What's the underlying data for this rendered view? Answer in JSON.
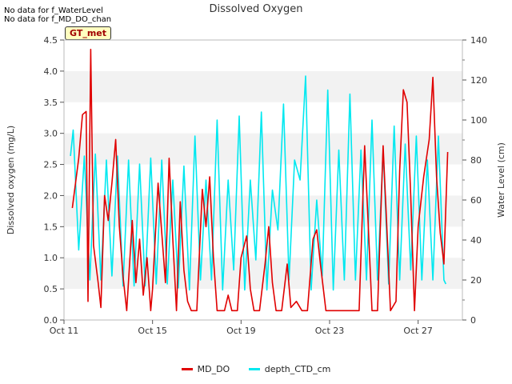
{
  "notes": [
    "No data for f_WaterLevel",
    "No data for f_MD_DO_chan"
  ],
  "badge": "GT_met",
  "chart_data": {
    "type": "line",
    "title": "Dissolved Oxygen",
    "ylabel": "Dissolved oxygen (mg/L)",
    "y2label": "Water Level (cm)",
    "xlim": [
      "2023-10-11",
      "2023-10-29"
    ],
    "x_ticks": [
      {
        "date": "2023-10-11",
        "label": "Oct 11"
      },
      {
        "date": "2023-10-15",
        "label": "Oct 15"
      },
      {
        "date": "2023-10-19",
        "label": "Oct 19"
      },
      {
        "date": "2023-10-23",
        "label": "Oct 23"
      },
      {
        "date": "2023-10-27",
        "label": "Oct 27"
      }
    ],
    "ylim": [
      0,
      4.5
    ],
    "y_ticks": [
      "0.0",
      "0.5",
      "1.0",
      "1.5",
      "2.0",
      "2.5",
      "3.0",
      "3.5",
      "4.0",
      "4.5"
    ],
    "y2lim": [
      0,
      140
    ],
    "y2_ticks": [
      "0",
      "20",
      "40",
      "60",
      "80",
      "100",
      "120",
      "140"
    ],
    "grid": "horizontal bands",
    "legend": "bottom",
    "series": [
      {
        "name": "MD_DO",
        "axis": "left",
        "color": "#e00000",
        "points": [
          [
            "2023-10-11T09:00",
            1.8
          ],
          [
            "2023-10-11T16:00",
            2.6
          ],
          [
            "2023-10-11T20:00",
            3.3
          ],
          [
            "2023-10-12T00:00",
            3.35
          ],
          [
            "2023-10-12T02:00",
            0.3
          ],
          [
            "2023-10-12T05:00",
            4.35
          ],
          [
            "2023-10-12T08:00",
            1.2
          ],
          [
            "2023-10-12T13:00",
            0.6
          ],
          [
            "2023-10-12T16:00",
            0.2
          ],
          [
            "2023-10-12T20:00",
            2.0
          ],
          [
            "2023-10-13T00:00",
            1.6
          ],
          [
            "2023-10-13T04:00",
            2.2
          ],
          [
            "2023-10-13T08:00",
            2.9
          ],
          [
            "2023-10-13T12:00",
            1.5
          ],
          [
            "2023-10-13T16:00",
            0.7
          ],
          [
            "2023-10-13T20:00",
            0.15
          ],
          [
            "2023-10-14T02:00",
            1.6
          ],
          [
            "2023-10-14T06:00",
            0.6
          ],
          [
            "2023-10-14T10:00",
            1.3
          ],
          [
            "2023-10-14T14:00",
            0.4
          ],
          [
            "2023-10-14T18:00",
            1.0
          ],
          [
            "2023-10-14T22:00",
            0.15
          ],
          [
            "2023-10-15T00:00",
            0.5
          ],
          [
            "2023-10-15T06:00",
            2.2
          ],
          [
            "2023-10-15T10:00",
            1.4
          ],
          [
            "2023-10-15T14:00",
            0.6
          ],
          [
            "2023-10-15T18:00",
            2.6
          ],
          [
            "2023-10-15T22:00",
            1.3
          ],
          [
            "2023-10-16T02:00",
            0.15
          ],
          [
            "2023-10-16T06:00",
            1.9
          ],
          [
            "2023-10-16T10:00",
            0.8
          ],
          [
            "2023-10-16T14:00",
            0.3
          ],
          [
            "2023-10-16T18:00",
            0.15
          ],
          [
            "2023-10-17T00:00",
            0.15
          ],
          [
            "2023-10-17T06:00",
            2.1
          ],
          [
            "2023-10-17T10:00",
            1.5
          ],
          [
            "2023-10-17T14:00",
            2.3
          ],
          [
            "2023-10-17T18:00",
            1.0
          ],
          [
            "2023-10-17T22:00",
            0.15
          ],
          [
            "2023-10-18T06:00",
            0.15
          ],
          [
            "2023-10-18T10:00",
            0.4
          ],
          [
            "2023-10-18T14:00",
            0.15
          ],
          [
            "2023-10-18T20:00",
            0.15
          ],
          [
            "2023-10-19T00:00",
            1.0
          ],
          [
            "2023-10-19T06:00",
            1.35
          ],
          [
            "2023-10-19T10:00",
            0.5
          ],
          [
            "2023-10-19T14:00",
            0.15
          ],
          [
            "2023-10-19T20:00",
            0.15
          ],
          [
            "2023-10-20T02:00",
            0.9
          ],
          [
            "2023-10-20T06:00",
            1.5
          ],
          [
            "2023-10-20T10:00",
            0.6
          ],
          [
            "2023-10-20T14:00",
            0.15
          ],
          [
            "2023-10-20T20:00",
            0.15
          ],
          [
            "2023-10-21T02:00",
            0.9
          ],
          [
            "2023-10-21T06:00",
            0.2
          ],
          [
            "2023-10-21T12:00",
            0.3
          ],
          [
            "2023-10-21T18:00",
            0.15
          ],
          [
            "2023-10-22T00:00",
            0.15
          ],
          [
            "2023-10-22T06:00",
            1.3
          ],
          [
            "2023-10-22T10:00",
            1.45
          ],
          [
            "2023-10-22T14:00",
            0.9
          ],
          [
            "2023-10-22T20:00",
            0.15
          ],
          [
            "2023-10-23T02:00",
            0.15
          ],
          [
            "2023-10-23T10:00",
            0.15
          ],
          [
            "2023-10-23T18:00",
            0.15
          ],
          [
            "2023-10-24T02:00",
            0.15
          ],
          [
            "2023-10-24T08:00",
            0.15
          ],
          [
            "2023-10-24T14:00",
            2.8
          ],
          [
            "2023-10-24T18:00",
            1.5
          ],
          [
            "2023-10-24T22:00",
            0.15
          ],
          [
            "2023-10-25T04:00",
            0.15
          ],
          [
            "2023-10-25T10:00",
            2.8
          ],
          [
            "2023-10-25T14:00",
            1.5
          ],
          [
            "2023-10-25T18:00",
            0.15
          ],
          [
            "2023-10-26T00:00",
            0.3
          ],
          [
            "2023-10-26T04:00",
            2.4
          ],
          [
            "2023-10-26T08:00",
            3.7
          ],
          [
            "2023-10-26T12:00",
            3.5
          ],
          [
            "2023-10-26T16:00",
            2.0
          ],
          [
            "2023-10-26T20:00",
            0.15
          ],
          [
            "2023-10-27T00:00",
            1.5
          ],
          [
            "2023-10-27T06:00",
            2.3
          ],
          [
            "2023-10-27T12:00",
            2.9
          ],
          [
            "2023-10-27T16:00",
            3.9
          ],
          [
            "2023-10-27T20:00",
            2.3
          ],
          [
            "2023-10-28T00:00",
            1.4
          ],
          [
            "2023-10-28T04:00",
            0.9
          ],
          [
            "2023-10-28T08:00",
            2.7
          ]
        ]
      },
      {
        "name": "depth_CTD_cm",
        "axis": "right",
        "color": "#00e8f0",
        "points": [
          [
            "2023-10-11T07:00",
            82
          ],
          [
            "2023-10-11T10:00",
            95
          ],
          [
            "2023-10-11T16:00",
            35
          ],
          [
            "2023-10-11T22:00",
            82
          ],
          [
            "2023-10-12T04:00",
            20
          ],
          [
            "2023-10-12T10:00",
            83
          ],
          [
            "2023-10-12T16:00",
            20
          ],
          [
            "2023-10-12T22:00",
            80
          ],
          [
            "2023-10-13T04:00",
            22
          ],
          [
            "2023-10-13T10:00",
            82
          ],
          [
            "2023-10-13T16:00",
            17
          ],
          [
            "2023-10-13T22:00",
            80
          ],
          [
            "2023-10-14T04:00",
            17
          ],
          [
            "2023-10-14T10:00",
            78
          ],
          [
            "2023-10-14T16:00",
            17
          ],
          [
            "2023-10-14T22:00",
            81
          ],
          [
            "2023-10-15T04:00",
            18
          ],
          [
            "2023-10-15T10:00",
            80
          ],
          [
            "2023-10-15T16:00",
            18
          ],
          [
            "2023-10-15T22:00",
            70
          ],
          [
            "2023-10-16T04:00",
            16
          ],
          [
            "2023-10-16T10:00",
            77
          ],
          [
            "2023-10-16T16:00",
            15
          ],
          [
            "2023-10-16T22:00",
            92
          ],
          [
            "2023-10-17T04:00",
            20
          ],
          [
            "2023-10-17T10:00",
            70
          ],
          [
            "2023-10-17T16:00",
            20
          ],
          [
            "2023-10-17T22:00",
            100
          ],
          [
            "2023-10-18T04:00",
            15
          ],
          [
            "2023-10-18T10:00",
            70
          ],
          [
            "2023-10-18T16:00",
            25
          ],
          [
            "2023-10-18T22:00",
            102
          ],
          [
            "2023-10-19T04:00",
            15
          ],
          [
            "2023-10-19T10:00",
            70
          ],
          [
            "2023-10-19T16:00",
            30
          ],
          [
            "2023-10-19T22:00",
            104
          ],
          [
            "2023-10-20T04:00",
            15
          ],
          [
            "2023-10-20T10:00",
            65
          ],
          [
            "2023-10-20T16:00",
            45
          ],
          [
            "2023-10-20T22:00",
            108
          ],
          [
            "2023-10-21T04:00",
            20
          ],
          [
            "2023-10-21T10:00",
            80
          ],
          [
            "2023-10-21T16:00",
            70
          ],
          [
            "2023-10-21T22:00",
            122
          ],
          [
            "2023-10-22T04:00",
            15
          ],
          [
            "2023-10-22T10:00",
            60
          ],
          [
            "2023-10-22T16:00",
            22
          ],
          [
            "2023-10-22T22:00",
            115
          ],
          [
            "2023-10-23T04:00",
            15
          ],
          [
            "2023-10-23T10:00",
            85
          ],
          [
            "2023-10-23T16:00",
            20
          ],
          [
            "2023-10-23T22:00",
            113
          ],
          [
            "2023-10-24T04:00",
            20
          ],
          [
            "2023-10-24T10:00",
            85
          ],
          [
            "2023-10-24T16:00",
            20
          ],
          [
            "2023-10-24T22:00",
            100
          ],
          [
            "2023-10-25T04:00",
            20
          ],
          [
            "2023-10-25T10:00",
            85
          ],
          [
            "2023-10-25T16:00",
            18
          ],
          [
            "2023-10-25T22:00",
            97
          ],
          [
            "2023-10-26T04:00",
            20
          ],
          [
            "2023-10-26T10:00",
            88
          ],
          [
            "2023-10-26T16:00",
            25
          ],
          [
            "2023-10-26T22:00",
            92
          ],
          [
            "2023-10-27T04:00",
            20
          ],
          [
            "2023-10-27T10:00",
            80
          ],
          [
            "2023-10-27T16:00",
            20
          ],
          [
            "2023-10-27T22:00",
            92
          ],
          [
            "2023-10-28T04:00",
            20
          ],
          [
            "2023-10-28T06:00",
            18
          ]
        ]
      }
    ]
  }
}
